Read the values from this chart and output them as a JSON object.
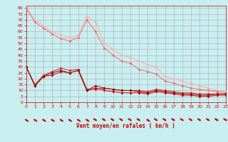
{
  "bg_color": "#c8eef0",
  "grid_color": "#aaaaaa",
  "xlabel": "Vent moyen/en rafales ( km/h )",
  "xlabel_color": "#cc0000",
  "tick_color": "#cc0000",
  "ylim": [
    0,
    82
  ],
  "xlim": [
    0,
    23
  ],
  "yticks": [
    0,
    5,
    10,
    15,
    20,
    25,
    30,
    35,
    40,
    45,
    50,
    55,
    60,
    65,
    70,
    75,
    80
  ],
  "xticks": [
    0,
    1,
    2,
    3,
    4,
    5,
    6,
    7,
    8,
    9,
    10,
    11,
    12,
    13,
    14,
    15,
    16,
    17,
    18,
    19,
    20,
    21,
    22,
    23
  ],
  "line1_x": [
    0,
    1,
    2,
    3,
    4,
    5,
    6,
    7,
    8,
    9,
    10,
    11,
    12,
    13,
    14,
    15,
    16,
    17,
    18,
    19,
    20,
    21,
    22,
    23
  ],
  "line1_y": [
    80,
    70,
    65,
    60,
    57,
    55,
    57,
    73,
    68,
    50,
    45,
    40,
    38,
    35,
    32,
    30,
    22,
    20,
    18,
    16,
    14,
    12,
    10,
    9
  ],
  "line1_color": "#ffaaaa",
  "line2_x": [
    0,
    1,
    2,
    3,
    4,
    5,
    6,
    7,
    8,
    9,
    10,
    11,
    12,
    13,
    14,
    15,
    16,
    17,
    18,
    19,
    20,
    21,
    22,
    23
  ],
  "line2_y": [
    80,
    68,
    63,
    58,
    54,
    52,
    55,
    70,
    60,
    46,
    40,
    35,
    33,
    28,
    26,
    24,
    18,
    16,
    14,
    12,
    11,
    10,
    9,
    8
  ],
  "line2_color": "#ff6666",
  "line3_x": [
    0,
    1,
    2,
    3,
    4,
    5,
    6,
    7,
    8,
    9,
    10,
    11,
    12,
    13,
    14,
    15,
    16,
    17,
    18,
    19,
    20,
    21,
    22,
    23
  ],
  "line3_y": [
    30,
    15,
    23,
    26,
    29,
    27,
    28,
    11,
    11,
    12,
    11,
    10,
    10,
    10,
    9,
    11,
    10,
    9,
    8,
    8,
    7,
    7,
    7,
    7
  ],
  "line3_color": "#dd2222",
  "line4_x": [
    0,
    1,
    2,
    3,
    4,
    5,
    6,
    7,
    8,
    9,
    10,
    11,
    12,
    13,
    14,
    15,
    16,
    17,
    18,
    19,
    20,
    21,
    22,
    23
  ],
  "line4_y": [
    30,
    14,
    22,
    23,
    26,
    25,
    27,
    10,
    12,
    10,
    9,
    8,
    8,
    8,
    7,
    9,
    8,
    7,
    6,
    6,
    5,
    5,
    6,
    6
  ],
  "line4_color": "#cc0000",
  "line5_x": [
    0,
    1,
    2,
    3,
    4,
    5,
    6,
    7,
    8,
    9,
    10,
    11,
    12,
    13,
    14,
    15,
    16,
    17,
    18,
    19,
    20,
    21,
    22,
    23
  ],
  "line5_y": [
    30,
    14,
    22,
    25,
    27,
    25,
    27,
    10,
    14,
    12,
    11,
    10,
    10,
    9,
    8,
    10,
    9,
    8,
    7,
    7,
    6,
    6,
    7,
    7
  ],
  "line5_color": "#990000",
  "arrow_dirs": [
    225,
    225,
    225,
    225,
    225,
    225,
    225,
    225,
    45,
    45,
    45,
    45,
    45,
    45,
    225,
    45,
    45,
    45,
    45,
    45,
    45,
    45,
    45,
    45
  ],
  "marker_size": 2.0,
  "linewidth": 0.7,
  "font_size_ticks": 4.5,
  "font_size_xlabel": 5.5
}
